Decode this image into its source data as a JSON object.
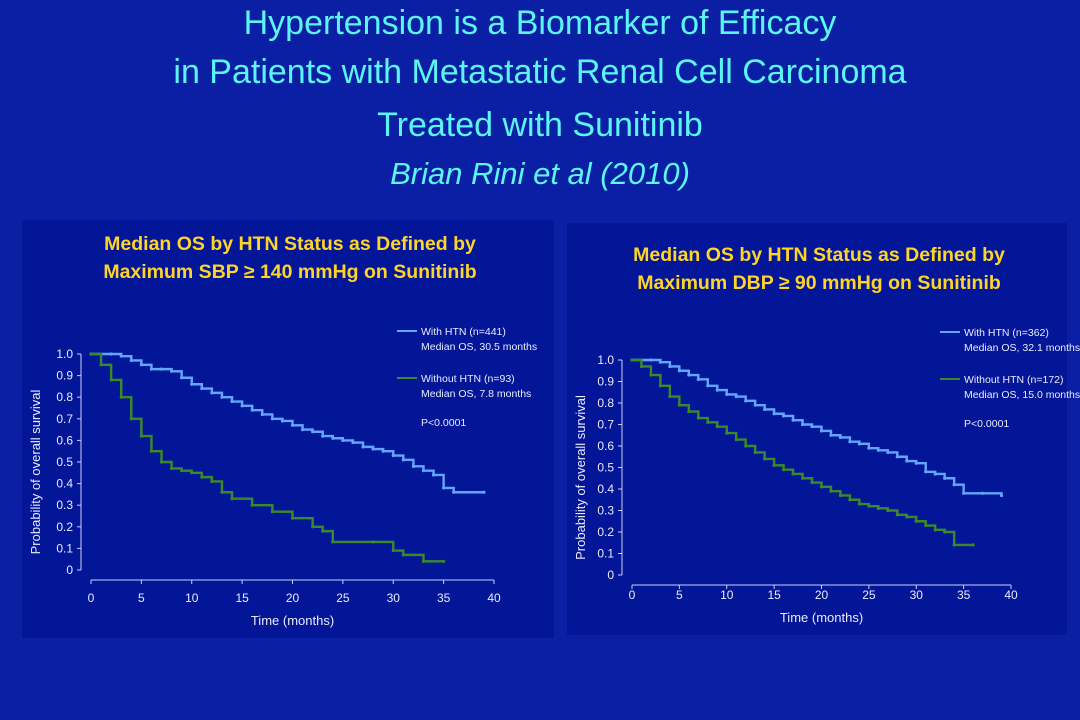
{
  "slide": {
    "title_lines": [
      "Hypertension is a Biomarker of Efficacy",
      "in Patients with Metastatic Renal Cell Carcinoma",
      "Treated with Sunitinib"
    ],
    "citation": "Brian Rini et al (2010)"
  },
  "colors": {
    "background": "#0b1fa4",
    "panel": "#031697",
    "title": "#5cf5f5",
    "panel_title": "#ffd42a",
    "with_htn": "#63a6ff",
    "without_htn": "#3a8a2a"
  },
  "chart_data": [
    {
      "type": "line",
      "title_lines": [
        "Median OS by HTN Status as Defined by",
        "Maximum SBP ≥ 140 mmHg on Sunitinib"
      ],
      "xlabel": "Time (months)",
      "ylabel": "Probability of overall survival",
      "xlim": [
        0,
        40
      ],
      "ylim": [
        0,
        1.0
      ],
      "x_ticks": [
        "0",
        "5",
        "10",
        "15",
        "20",
        "25",
        "30",
        "35",
        "40"
      ],
      "y_ticks": [
        "0",
        "0.1",
        "0.2",
        "0.3",
        "0.4",
        "0.5",
        "0.6",
        "0.7",
        "0.8",
        "0.9",
        "1.0"
      ],
      "legend": [
        {
          "line1": "With HTN (n=441)",
          "line2": "Median OS, 30.5 months"
        },
        {
          "line1": "Without HTN (n=93)",
          "line2": "Median OS, 7.8 months"
        }
      ],
      "pvalue": "P<0.0001",
      "series": [
        {
          "name": "With HTN (n=441)",
          "points": [
            [
              0,
              1.0
            ],
            [
              2,
              1.0
            ],
            [
              3,
              0.99
            ],
            [
              4,
              0.97
            ],
            [
              5,
              0.95
            ],
            [
              6,
              0.93
            ],
            [
              7,
              0.93
            ],
            [
              8,
              0.92
            ],
            [
              9,
              0.89
            ],
            [
              10,
              0.86
            ],
            [
              11,
              0.84
            ],
            [
              12,
              0.82
            ],
            [
              13,
              0.8
            ],
            [
              14,
              0.78
            ],
            [
              15,
              0.76
            ],
            [
              16,
              0.74
            ],
            [
              17,
              0.72
            ],
            [
              18,
              0.7
            ],
            [
              19,
              0.69
            ],
            [
              20,
              0.67
            ],
            [
              21,
              0.65
            ],
            [
              22,
              0.64
            ],
            [
              23,
              0.62
            ],
            [
              24,
              0.61
            ],
            [
              25,
              0.6
            ],
            [
              26,
              0.59
            ],
            [
              27,
              0.57
            ],
            [
              28,
              0.56
            ],
            [
              29,
              0.55
            ],
            [
              30,
              0.53
            ],
            [
              31,
              0.51
            ],
            [
              32,
              0.48
            ],
            [
              33,
              0.46
            ],
            [
              34,
              0.44
            ],
            [
              35,
              0.38
            ],
            [
              36,
              0.36
            ],
            [
              39,
              0.36
            ]
          ]
        },
        {
          "name": "Without HTN (n=93)",
          "points": [
            [
              0,
              1.0
            ],
            [
              1,
              0.95
            ],
            [
              2,
              0.88
            ],
            [
              3,
              0.8
            ],
            [
              4,
              0.7
            ],
            [
              5,
              0.62
            ],
            [
              6,
              0.55
            ],
            [
              7,
              0.5
            ],
            [
              8,
              0.47
            ],
            [
              9,
              0.46
            ],
            [
              10,
              0.45
            ],
            [
              11,
              0.43
            ],
            [
              12,
              0.41
            ],
            [
              13,
              0.36
            ],
            [
              14,
              0.33
            ],
            [
              16,
              0.3
            ],
            [
              18,
              0.27
            ],
            [
              20,
              0.24
            ],
            [
              22,
              0.2
            ],
            [
              23,
              0.18
            ],
            [
              24,
              0.13
            ],
            [
              28,
              0.13
            ],
            [
              30,
              0.09
            ],
            [
              31,
              0.07
            ],
            [
              33,
              0.04
            ],
            [
              35,
              0.04
            ]
          ]
        }
      ]
    },
    {
      "type": "line",
      "title_lines": [
        "Median OS by HTN Status as Defined by",
        "Maximum DBP ≥ 90 mmHg on Sunitinib"
      ],
      "xlabel": "Time (months)",
      "ylabel": "Probability of overall survival",
      "xlim": [
        0,
        40
      ],
      "ylim": [
        0,
        1.0
      ],
      "x_ticks": [
        "0",
        "5",
        "10",
        "15",
        "20",
        "25",
        "30",
        "35",
        "40"
      ],
      "y_ticks": [
        "0",
        "0.1",
        "0.2",
        "0.3",
        "0.4",
        "0.5",
        "0.6",
        "0.7",
        "0.8",
        "0.9",
        "1.0"
      ],
      "legend": [
        {
          "line1": "With HTN (n=362)",
          "line2": "Median OS, 32.1 months"
        },
        {
          "line1": "Without HTN (n=172)",
          "line2": "Median OS, 15.0 months"
        }
      ],
      "pvalue": "P<0.0001",
      "series": [
        {
          "name": "With HTN (n=362)",
          "points": [
            [
              0,
              1.0
            ],
            [
              2,
              1.0
            ],
            [
              3,
              0.99
            ],
            [
              4,
              0.97
            ],
            [
              5,
              0.95
            ],
            [
              6,
              0.93
            ],
            [
              7,
              0.91
            ],
            [
              8,
              0.88
            ],
            [
              9,
              0.86
            ],
            [
              10,
              0.84
            ],
            [
              11,
              0.83
            ],
            [
              12,
              0.81
            ],
            [
              13,
              0.79
            ],
            [
              14,
              0.77
            ],
            [
              15,
              0.75
            ],
            [
              16,
              0.74
            ],
            [
              17,
              0.72
            ],
            [
              18,
              0.7
            ],
            [
              19,
              0.69
            ],
            [
              20,
              0.67
            ],
            [
              21,
              0.65
            ],
            [
              22,
              0.64
            ],
            [
              23,
              0.62
            ],
            [
              24,
              0.61
            ],
            [
              25,
              0.59
            ],
            [
              26,
              0.58
            ],
            [
              27,
              0.57
            ],
            [
              28,
              0.55
            ],
            [
              29,
              0.53
            ],
            [
              30,
              0.52
            ],
            [
              31,
              0.48
            ],
            [
              32,
              0.47
            ],
            [
              33,
              0.45
            ],
            [
              34,
              0.42
            ],
            [
              35,
              0.38
            ],
            [
              37,
              0.38
            ],
            [
              39,
              0.37
            ]
          ]
        },
        {
          "name": "Without HTN (n=172)",
          "points": [
            [
              0,
              1.0
            ],
            [
              1,
              0.97
            ],
            [
              2,
              0.93
            ],
            [
              3,
              0.88
            ],
            [
              4,
              0.83
            ],
            [
              5,
              0.79
            ],
            [
              6,
              0.76
            ],
            [
              7,
              0.73
            ],
            [
              8,
              0.71
            ],
            [
              9,
              0.69
            ],
            [
              10,
              0.66
            ],
            [
              11,
              0.63
            ],
            [
              12,
              0.6
            ],
            [
              13,
              0.57
            ],
            [
              14,
              0.54
            ],
            [
              15,
              0.51
            ],
            [
              16,
              0.49
            ],
            [
              17,
              0.47
            ],
            [
              18,
              0.45
            ],
            [
              19,
              0.43
            ],
            [
              20,
              0.41
            ],
            [
              21,
              0.39
            ],
            [
              22,
              0.37
            ],
            [
              23,
              0.35
            ],
            [
              24,
              0.33
            ],
            [
              25,
              0.32
            ],
            [
              26,
              0.31
            ],
            [
              27,
              0.3
            ],
            [
              28,
              0.28
            ],
            [
              29,
              0.27
            ],
            [
              30,
              0.25
            ],
            [
              31,
              0.23
            ],
            [
              32,
              0.21
            ],
            [
              33,
              0.2
            ],
            [
              34,
              0.14
            ],
            [
              36,
              0.14
            ]
          ]
        }
      ]
    }
  ]
}
